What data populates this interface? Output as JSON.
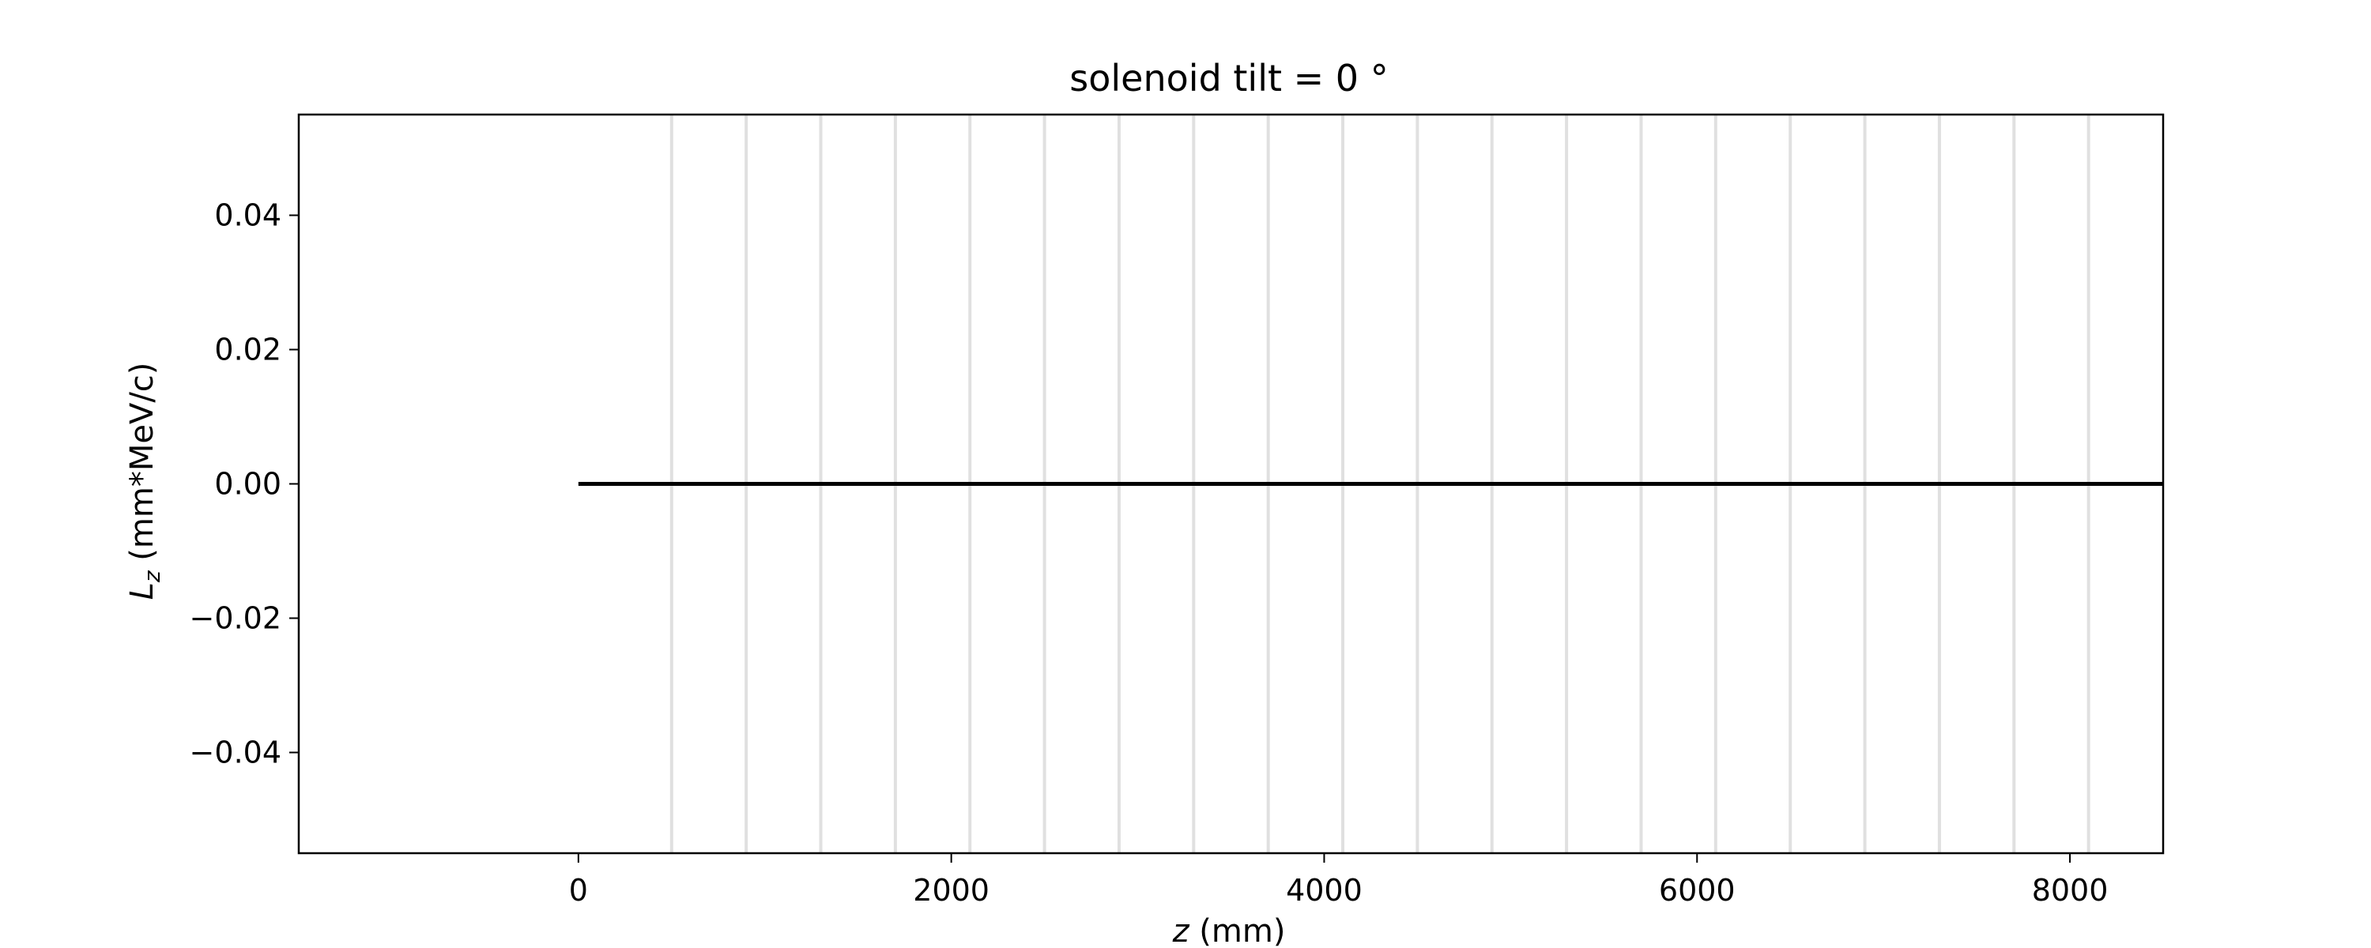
{
  "chart_data": {
    "type": "line",
    "title": "solenoid tilt = 0 °",
    "xlabel_var": "z",
    "xlabel_unit": " (mm)",
    "ylabel_var": "L",
    "ylabel_sub": "z",
    "ylabel_unit": " (mm*MeV/c)",
    "xlim": [
      -1500,
      8500
    ],
    "ylim": [
      -0.055,
      0.055
    ],
    "x_ticks": [
      0,
      2000,
      4000,
      6000,
      8000
    ],
    "x_tick_labels": [
      "0",
      "2000",
      "4000",
      "6000",
      "8000"
    ],
    "y_ticks": [
      -0.04,
      -0.02,
      0.0,
      0.02,
      0.04
    ],
    "y_tick_labels": [
      "−0.04",
      "−0.02",
      "0.00",
      "0.02",
      "0.04"
    ],
    "vertical_markers": [
      500,
      900,
      1300,
      1700,
      2100,
      2500,
      2900,
      3300,
      3700,
      4100,
      4500,
      4900,
      5300,
      5700,
      6100,
      6500,
      6900,
      7300,
      7700,
      8100
    ],
    "series": [
      {
        "x": [
          0,
          8500
        ],
        "y": [
          0.0,
          0.0
        ]
      }
    ],
    "colors": {
      "line": "#000000",
      "markers": "#e0e0e0",
      "frame": "#000000"
    },
    "grid": false
  }
}
